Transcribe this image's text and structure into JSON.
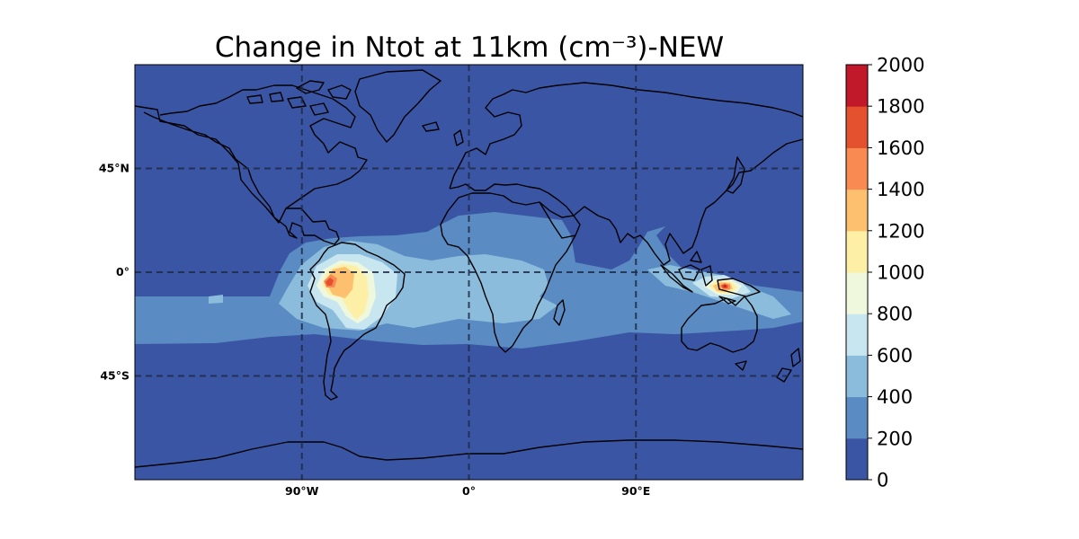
{
  "title": "Change in Ntot at 11km (cm⁻³)-NEW",
  "map": {
    "projection": "PlateCarree",
    "extent_lon": [
      -180,
      180
    ],
    "extent_lat": [
      -90,
      90
    ],
    "gridlines": true,
    "lon_ticks": [
      {
        "value": -90,
        "label": "90°W"
      },
      {
        "value": 0,
        "label": "0°"
      },
      {
        "value": 90,
        "label": "90°E"
      }
    ],
    "lat_ticks": [
      {
        "value": 45,
        "label": "45°N"
      },
      {
        "value": 0,
        "label": "0°"
      },
      {
        "value": -45,
        "label": "45°S"
      }
    ],
    "field": "Ntot change at 11km",
    "features": [
      {
        "name": "Amazon maximum",
        "level": 1200,
        "peak_level": 1600
      },
      {
        "name": "Maritime Continent maximum",
        "level": 1000,
        "peak_level": 1800
      }
    ]
  },
  "colorbar": {
    "levels": [
      0,
      200,
      400,
      600,
      800,
      1000,
      1200,
      1400,
      1600,
      1800,
      2000
    ],
    "colors": [
      "#3b55a5",
      "#5a8bc2",
      "#8cbcdb",
      "#c8e6f0",
      "#eff8dd",
      "#feefa7",
      "#fdc06e",
      "#f98a51",
      "#e4512e",
      "#c2192a"
    ],
    "tick_labels": [
      "0",
      "200",
      "400",
      "600",
      "800",
      "1000",
      "1200",
      "1400",
      "1600",
      "1800",
      "2000"
    ]
  }
}
